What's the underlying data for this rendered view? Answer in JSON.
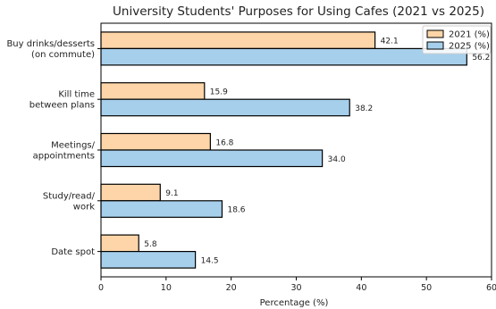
{
  "chart_data": {
    "type": "bar",
    "orientation": "horizontal",
    "title": "University Students' Purposes for Using Cafes (2021 vs 2025)",
    "xlabel": "Percentage (%)",
    "ylabel": "",
    "xlim": [
      0,
      60
    ],
    "xticks": [
      0,
      10,
      20,
      30,
      40,
      50,
      60
    ],
    "categories": [
      [
        "Buy drinks/desserts",
        "(on commute)"
      ],
      [
        "Kill time",
        "between plans"
      ],
      [
        "Meetings/",
        "appointments"
      ],
      [
        "Study/read/",
        "work"
      ],
      [
        "Date spot"
      ]
    ],
    "series": [
      {
        "name": "2021 (%)",
        "color": "#fdd5a8",
        "values": [
          42.1,
          15.9,
          16.8,
          9.1,
          5.8
        ],
        "labels": [
          "42.1",
          "15.9",
          "16.8",
          "9.1",
          "5.8"
        ]
      },
      {
        "name": "2025 (%)",
        "color": "#a6cfec",
        "values": [
          56.2,
          38.2,
          34.0,
          18.6,
          14.5
        ],
        "labels": [
          "56.2",
          "38.2",
          "34.0",
          "18.6",
          "14.5"
        ]
      }
    ],
    "grid": false,
    "legend_position": "top-right"
  }
}
